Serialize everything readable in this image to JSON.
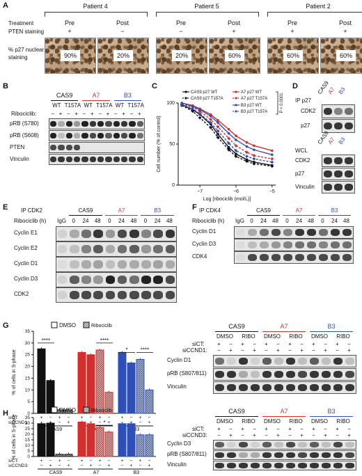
{
  "panelA": {
    "letter": "A",
    "treatment_label": "Treatment",
    "pten_label": "PTEN staining",
    "p27_label_1": "% p27 nuclear",
    "p27_label_2": "staining",
    "patients": [
      {
        "name": "Patient 4",
        "cols": [
          {
            "t": "Pre",
            "pten": "+",
            "pct": "90%"
          },
          {
            "t": "Post",
            "pten": "−",
            "pct": "20%"
          }
        ]
      },
      {
        "name": "Patient 5",
        "cols": [
          {
            "t": "Pre",
            "pten": "−",
            "pct": "20%"
          },
          {
            "t": "Post",
            "pten": "+",
            "pct": "60%"
          }
        ]
      },
      {
        "name": "Patient 2",
        "cols": [
          {
            "t": "Pre",
            "pten": "+",
            "pct": "60%"
          },
          {
            "t": "Post",
            "pten": "+",
            "pct": "60%"
          }
        ]
      }
    ]
  },
  "panelB": {
    "letter": "B",
    "groups": [
      "CAS9",
      "A7",
      "B3"
    ],
    "subs": [
      "WT",
      "T157A",
      "WT",
      "T157A",
      "WT",
      "T157A"
    ],
    "ribo_label": "Ribociclib:",
    "ribo_signs": [
      "−",
      "+",
      "−",
      "+",
      "−",
      "+",
      "−",
      "+",
      "−",
      "+",
      "−",
      "+"
    ],
    "rows": [
      "pRB (S780)",
      "pRB (S608)",
      "PTEN",
      "Vinculin"
    ]
  },
  "panelC": {
    "letter": "C",
    "ylabel": "Cell number (% of control)",
    "xlabel": "Log [ribociclib (mol/L)]",
    "pvalue": "P < 0.0001",
    "legend": [
      "CAS9 p27 WT",
      "CAS9 p27 T157A",
      "A7 p27 WT",
      "A7 p27 T157A",
      "B3 p27 WT",
      "B3 p27 T157A"
    ],
    "yticks": [
      "0",
      "50",
      "100"
    ],
    "xticks": [
      "−7",
      "−6",
      "−5"
    ]
  },
  "chart_data": {
    "type": "line",
    "xlabel": "Log [ribociclib (mol/L)]",
    "ylabel": "Cell number (% of control)",
    "ylim": [
      0,
      100
    ],
    "xlim": [
      -7.6,
      -4.9
    ],
    "x": [
      -7.5,
      -7.2,
      -7.0,
      -6.7,
      -6.5,
      -6.2,
      -6.0,
      -5.7,
      -5.5,
      -5.0
    ],
    "series": [
      {
        "name": "CAS9 p27 WT",
        "color": "#111111",
        "dashed": false,
        "values": [
          98,
          92,
          86,
          74,
          62,
          46,
          38,
          31,
          28,
          24
        ]
      },
      {
        "name": "CAS9 p27 T157A",
        "color": "#111111",
        "dashed": true,
        "values": [
          97,
          90,
          82,
          70,
          58,
          43,
          35,
          29,
          26,
          23
        ]
      },
      {
        "name": "A7 p27 WT",
        "color": "#d32f2f",
        "dashed": false,
        "values": [
          100,
          97,
          93,
          86,
          79,
          68,
          60,
          52,
          48,
          42
        ]
      },
      {
        "name": "A7 p27 T157A",
        "color": "#d32f2f",
        "dashed": true,
        "values": [
          99,
          95,
          90,
          80,
          71,
          57,
          48,
          40,
          36,
          32
        ]
      },
      {
        "name": "B3 p27 WT",
        "color": "#2e4fb5",
        "dashed": false,
        "values": [
          100,
          96,
          92,
          84,
          76,
          63,
          55,
          47,
          43,
          37
        ]
      },
      {
        "name": "B3 p27 T157A",
        "color": "#2e4fb5",
        "dashed": true,
        "values": [
          98,
          93,
          87,
          76,
          66,
          51,
          42,
          35,
          32,
          28
        ]
      }
    ]
  },
  "panelD": {
    "letter": "D",
    "ip_label": "IP p27",
    "cols": [
      "CAS9",
      "A7",
      "B3"
    ],
    "ip_rows": [
      "CDK2",
      "p27"
    ],
    "wcl_label": "WCL",
    "wcl_rows": [
      "CDK2",
      "p27",
      "Vinculin"
    ]
  },
  "panelE": {
    "letter": "E",
    "ip_label": "IP CDK2",
    "ribo_label": "Ribociclib (h)",
    "groups": [
      "CAS9",
      "A7",
      "B3"
    ],
    "igg": "IgG",
    "times": [
      "0",
      "24",
      "48",
      "0",
      "24",
      "48",
      "0",
      "24",
      "48"
    ],
    "rows": [
      "Cyclin E1",
      "Cyclin E2",
      "Cyclin D1",
      "Cyclin D3",
      "CDK2"
    ]
  },
  "panelF": {
    "letter": "F",
    "ip_label": "IP CDK4",
    "ribo_label": "Ribociclib (h)",
    "groups": [
      "CAS9",
      "A7",
      "B3"
    ],
    "igg": "IgG",
    "times": [
      "0",
      "24",
      "48",
      "0",
      "24",
      "48",
      "0",
      "24",
      "48"
    ],
    "rows": [
      "Cyclin D1",
      "Cyclin D3",
      "CDK4"
    ]
  },
  "panelG": {
    "letter": "G",
    "legend_dmso": "DMSO",
    "legend_ribo": "Ribociclib",
    "ylabel": "% of cells in S-phase",
    "yticks": [
      "0",
      "5",
      "10",
      "15",
      "20",
      "25",
      "30",
      "35"
    ],
    "sig": [
      "****",
      "****",
      "*",
      "****"
    ],
    "sict": "siCT:",
    "sicc": "siCCND1:",
    "groups": [
      "CAS9",
      "A7",
      "B3"
    ],
    "blot_groups": [
      "CAS9",
      "A7",
      "B3"
    ],
    "blot_treat": [
      "DMSO",
      "RIBO",
      "DMSO",
      "RIBO",
      "DMSO",
      "RIBO"
    ],
    "blot_sict": "siCT:",
    "blot_sicc": "siCCND1:",
    "blot_rows": [
      "Cyclin D1",
      "pRB (S807/811)",
      "Vinculin"
    ]
  },
  "panelH": {
    "letter": "H",
    "legend_dmso": "DMSO",
    "legend_ribo": "Ribociclib",
    "ylabel": "% of cells in S-phase",
    "yticks": [
      "0",
      "5",
      "10",
      "15",
      "20",
      "25",
      "30",
      "35"
    ],
    "sig": [
      "*"
    ],
    "sict": "siCT:",
    "sicc": "siCCND3:",
    "groups": [
      "CAS9",
      "A7",
      "B3"
    ],
    "blot_groups": [
      "CAS9",
      "A7",
      "B3"
    ],
    "blot_treat": [
      "DMSO",
      "RIBO",
      "DMSO",
      "RIBO",
      "DMSO",
      "RIBO"
    ],
    "blot_sict": "siCT:",
    "blot_sicc": "siCCND3:",
    "blot_rows": [
      "Cyclin D3",
      "pRB (S807/811)",
      "Vinculin"
    ]
  },
  "bar_data": {
    "G": [
      {
        "group": "CAS9",
        "color": "#111111",
        "values": [
          27.5,
          14,
          1.5,
          1.5
        ]
      },
      {
        "group": "A7",
        "color": "#d32f2f",
        "values": [
          26,
          25,
          27,
          9
        ]
      },
      {
        "group": "B3",
        "color": "#2e4fb5",
        "values": [
          26,
          21.5,
          23,
          10
        ]
      }
    ],
    "H": [
      {
        "group": "CAS9",
        "color": "#111111",
        "values": [
          29.5,
          30,
          2,
          2
        ]
      },
      {
        "group": "A7",
        "color": "#d32f2f",
        "values": [
          31,
          29.5,
          26,
          22
        ]
      },
      {
        "group": "B3",
        "color": "#2e4fb5",
        "values": [
          29.5,
          29.5,
          19.5,
          19.5
        ]
      }
    ]
  }
}
